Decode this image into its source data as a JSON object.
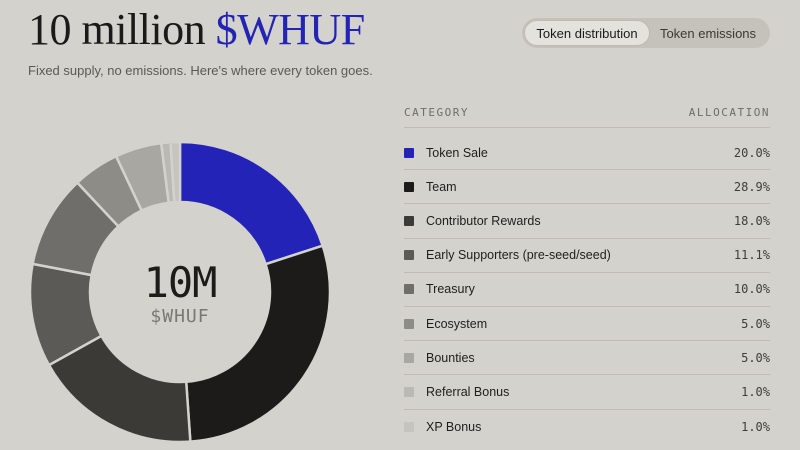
{
  "header": {
    "title_prefix": "10 million ",
    "title_token": "$WHUF",
    "subtitle": "Fixed supply, no emissions. Here's where every token goes."
  },
  "toggle": {
    "options": [
      "Token distribution",
      "Token emissions"
    ],
    "selected": "Token distribution"
  },
  "donut": {
    "center_value": "10M",
    "center_ticker": "$WHUF"
  },
  "table": {
    "col_category": "CATEGORY",
    "col_allocation": "ALLOCATION",
    "rows": [
      {
        "label": "Token Sale",
        "pct": "20.0%",
        "color": "#2323b8"
      },
      {
        "label": "Team",
        "pct": "28.9%",
        "color": "#1c1b19"
      },
      {
        "label": "Contributor Rewards",
        "pct": "18.0%",
        "color": "#3b3a37"
      },
      {
        "label": "Early Supporters (pre-seed/seed)",
        "pct": "11.1%",
        "color": "#5b5a56"
      },
      {
        "label": "Treasury",
        "pct": "10.0%",
        "color": "#6f6e6a"
      },
      {
        "label": "Ecosystem",
        "pct": "5.0%",
        "color": "#8d8c87"
      },
      {
        "label": "Bounties",
        "pct": "5.0%",
        "color": "#a8a7a1"
      },
      {
        "label": "Referral Bonus",
        "pct": "1.0%",
        "color": "#bbb9b3"
      },
      {
        "label": "XP Bonus",
        "pct": "1.0%",
        "color": "#c6c4be"
      }
    ]
  },
  "chart_data": {
    "type": "pie",
    "categories": [
      "Token Sale",
      "Team",
      "Contributor Rewards",
      "Early Supporters (pre-seed/seed)",
      "Treasury",
      "Ecosystem",
      "Bounties",
      "Referral Bonus",
      "XP Bonus"
    ],
    "values": [
      20.0,
      28.9,
      18.0,
      11.1,
      10.0,
      5.0,
      5.0,
      1.0,
      1.0
    ],
    "colors": [
      "#2323b8",
      "#1c1b19",
      "#3b3a37",
      "#5b5a56",
      "#6f6e6a",
      "#8d8c87",
      "#a8a7a1",
      "#bbb9b3",
      "#c6c4be"
    ],
    "donut": true
  }
}
